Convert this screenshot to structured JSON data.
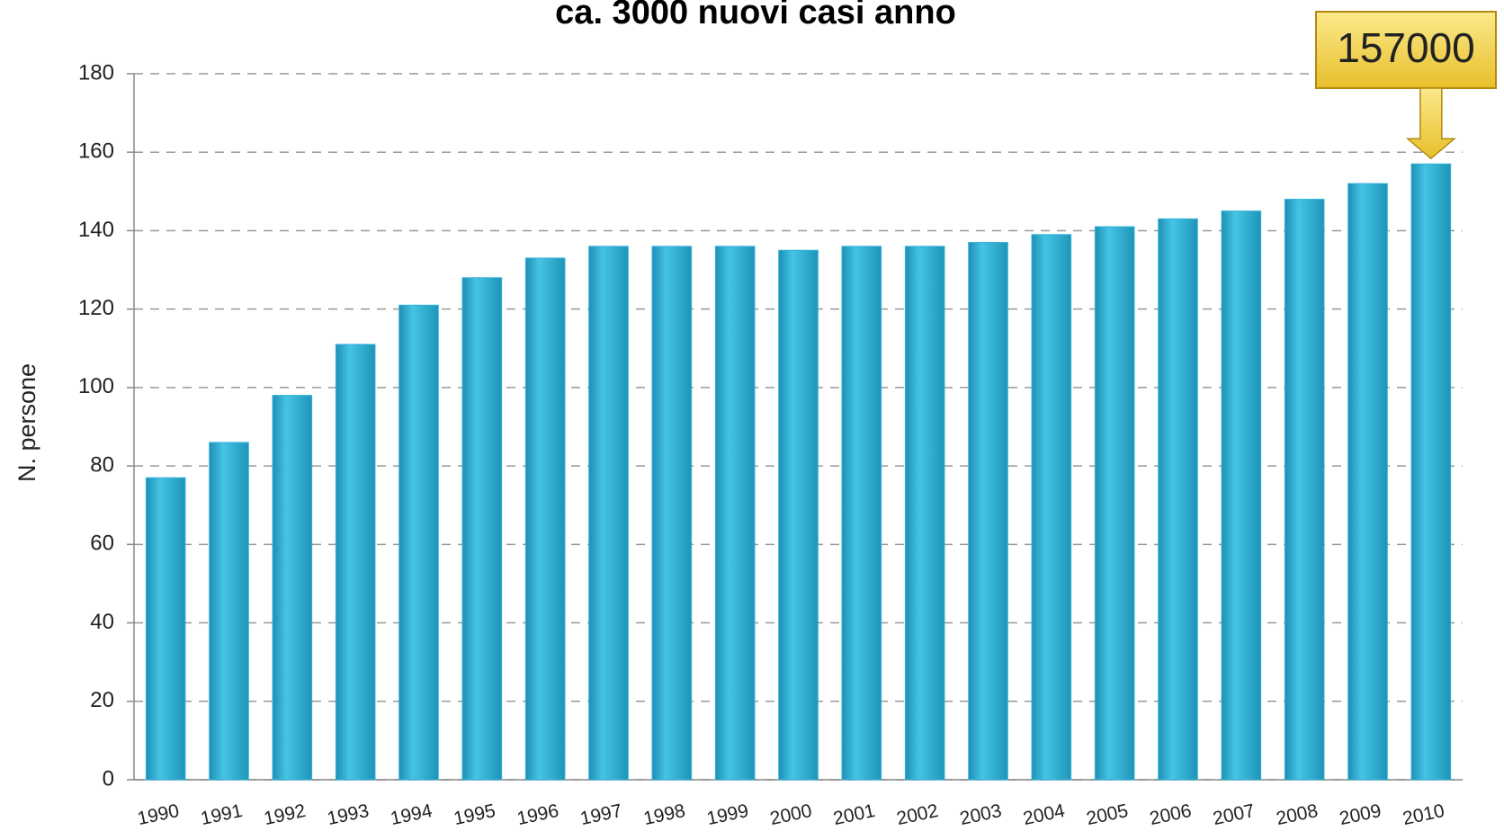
{
  "chart_data": {
    "type": "bar",
    "title": "ca. 3000 nuovi casi anno",
    "y_label": "N. persone",
    "categories": [
      "1990",
      "1991",
      "1992",
      "1993",
      "1994",
      "1995",
      "1996",
      "1997",
      "1998",
      "1999",
      "2000",
      "2001",
      "2002",
      "2003",
      "2004",
      "2005",
      "2006",
      "2007",
      "2008",
      "2009",
      "2010"
    ],
    "values": [
      77,
      86,
      98,
      111,
      121,
      128,
      133,
      136,
      136,
      136,
      135,
      136,
      136,
      137,
      139,
      141,
      143,
      145,
      148,
      152,
      157
    ],
    "color": "#33b3d8",
    "ylim": [
      0,
      180
    ],
    "yticks": [
      0,
      20,
      40,
      60,
      80,
      100,
      120,
      140,
      160,
      180
    ],
    "grid": true,
    "annotation": "157000"
  }
}
